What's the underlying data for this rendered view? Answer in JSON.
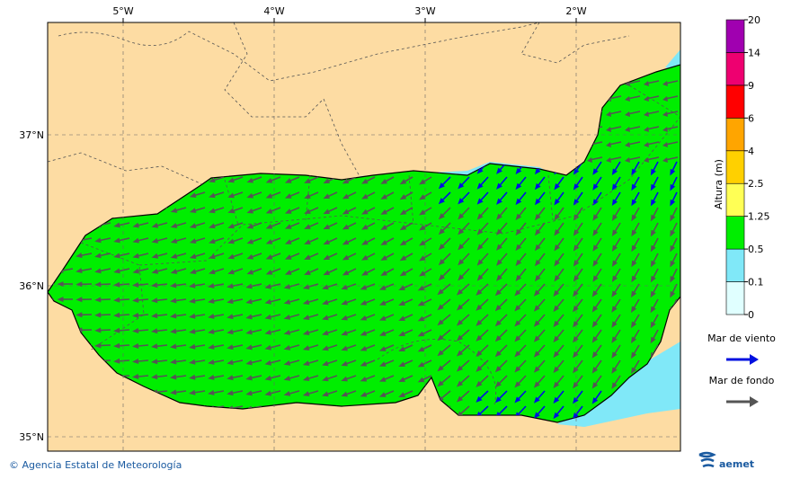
{
  "map": {
    "lon_ticks": [
      "5°W",
      "4°W",
      "3°W",
      "2°W"
    ],
    "lat_ticks": [
      "37°N",
      "36°N",
      "35°N"
    ],
    "colorbar": {
      "title": "Altura (m)",
      "levels": [
        0,
        0.1,
        0.5,
        1.25,
        2.5,
        4,
        6,
        9,
        14,
        20
      ],
      "colors": [
        "#e0ffff",
        "#80e8f8",
        "#00ee00",
        "#ffff55",
        "#ffd000",
        "#ffa500",
        "#ff0000",
        "#ee0070",
        "#a000b0"
      ]
    },
    "legend": [
      {
        "label": "Mar de viento",
        "color": "#0010e0"
      },
      {
        "label": "Mar de fondo",
        "color": "#555555"
      }
    ]
  },
  "footer": {
    "credit": "© Agencia Estatal de Meteorología",
    "logo": "aemet"
  }
}
